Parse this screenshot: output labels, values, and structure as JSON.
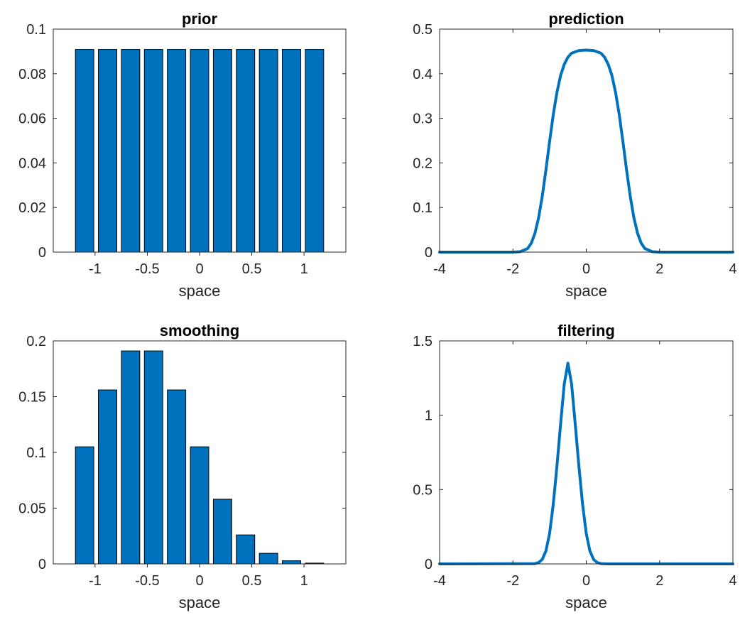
{
  "colors": {
    "bar_fill": "#0072BD",
    "bar_edge": "#000000",
    "line": "#0072BD",
    "axis": "#262626"
  },
  "chart_data": [
    {
      "id": "prior",
      "type": "bar",
      "title": "prior",
      "xlabel": "space",
      "ylabel": "",
      "x": [
        -1.1,
        -0.88,
        -0.66,
        -0.44,
        -0.22,
        0,
        0.22,
        0.44,
        0.66,
        0.88,
        1.1
      ],
      "values": [
        0.0909,
        0.0909,
        0.0909,
        0.0909,
        0.0909,
        0.0909,
        0.0909,
        0.0909,
        0.0909,
        0.0909,
        0.0909
      ],
      "xlim": [
        -1.4,
        1.4
      ],
      "ylim": [
        0,
        0.1
      ],
      "xticks": [
        -1,
        -0.5,
        0,
        0.5,
        1
      ],
      "xtick_labels": [
        "-1",
        "-0.5",
        "0",
        "0.5",
        "1"
      ],
      "yticks": [
        0,
        0.02,
        0.04,
        0.06,
        0.08,
        0.1
      ],
      "ytick_labels": [
        "0",
        "0.02",
        "0.04",
        "0.06",
        "0.08",
        "0.1"
      ]
    },
    {
      "id": "prediction",
      "type": "line",
      "title": "prediction",
      "xlabel": "space",
      "ylabel": "",
      "x": [
        -4,
        -2,
        -1.8,
        -1.6,
        -1.5,
        -1.4,
        -1.3,
        -1.2,
        -1.1,
        -1.0,
        -0.9,
        -0.8,
        -0.7,
        -0.6,
        -0.5,
        -0.4,
        -0.2,
        0,
        0.2,
        0.4,
        0.5,
        0.6,
        0.7,
        0.8,
        0.9,
        1.0,
        1.1,
        1.2,
        1.3,
        1.4,
        1.5,
        1.6,
        1.8,
        2,
        4
      ],
      "y": [
        0,
        0,
        0.001,
        0.008,
        0.02,
        0.042,
        0.077,
        0.125,
        0.184,
        0.248,
        0.308,
        0.358,
        0.396,
        0.421,
        0.437,
        0.446,
        0.452,
        0.453,
        0.452,
        0.446,
        0.437,
        0.421,
        0.396,
        0.358,
        0.308,
        0.248,
        0.184,
        0.125,
        0.077,
        0.042,
        0.02,
        0.008,
        0.001,
        0,
        0
      ],
      "xlim": [
        -4,
        4
      ],
      "ylim": [
        0,
        0.5
      ],
      "xticks": [
        -4,
        -2,
        0,
        2,
        4
      ],
      "xtick_labels": [
        "-4",
        "-2",
        "0",
        "2",
        "4"
      ],
      "yticks": [
        0,
        0.1,
        0.2,
        0.3,
        0.4,
        0.5
      ],
      "ytick_labels": [
        "0",
        "0.1",
        "0.2",
        "0.3",
        "0.4",
        "0.5"
      ]
    },
    {
      "id": "smoothing",
      "type": "bar",
      "title": "smoothing",
      "xlabel": "space",
      "ylabel": "",
      "x": [
        -1.1,
        -0.88,
        -0.66,
        -0.44,
        -0.22,
        0,
        0.22,
        0.44,
        0.66,
        0.88,
        1.1
      ],
      "values": [
        0.105,
        0.156,
        0.191,
        0.191,
        0.156,
        0.105,
        0.058,
        0.026,
        0.0095,
        0.0028,
        0.0007
      ],
      "xlim": [
        -1.4,
        1.4
      ],
      "ylim": [
        0,
        0.2
      ],
      "xticks": [
        -1,
        -0.5,
        0,
        0.5,
        1
      ],
      "xtick_labels": [
        "-1",
        "-0.5",
        "0",
        "0.5",
        "1"
      ],
      "yticks": [
        0,
        0.05,
        0.1,
        0.15,
        0.2
      ],
      "ytick_labels": [
        "0",
        "0.05",
        "0.1",
        "0.15",
        "0.2"
      ]
    },
    {
      "id": "filtering",
      "type": "line",
      "title": "filtering",
      "xlabel": "space",
      "ylabel": "",
      "x": [
        -4,
        -1.4,
        -1.3,
        -1.2,
        -1.1,
        -1.0,
        -0.9,
        -0.8,
        -0.7,
        -0.6,
        -0.5,
        -0.4,
        -0.3,
        -0.2,
        -0.1,
        0,
        0.1,
        0.2,
        0.3,
        0.4,
        0.6,
        4
      ],
      "y": [
        0,
        0.002,
        0.009,
        0.03,
        0.087,
        0.205,
        0.401,
        0.656,
        0.939,
        1.21,
        1.35,
        1.21,
        0.939,
        0.656,
        0.401,
        0.205,
        0.087,
        0.03,
        0.009,
        0.002,
        0,
        0
      ],
      "xlim": [
        -4,
        4
      ],
      "ylim": [
        0,
        1.5
      ],
      "xticks": [
        -4,
        -2,
        0,
        2,
        4
      ],
      "xtick_labels": [
        "-4",
        "-2",
        "0",
        "2",
        "4"
      ],
      "yticks": [
        0,
        0.5,
        1,
        1.5
      ],
      "ytick_labels": [
        "0",
        "0.5",
        "1",
        "1.5"
      ]
    }
  ]
}
